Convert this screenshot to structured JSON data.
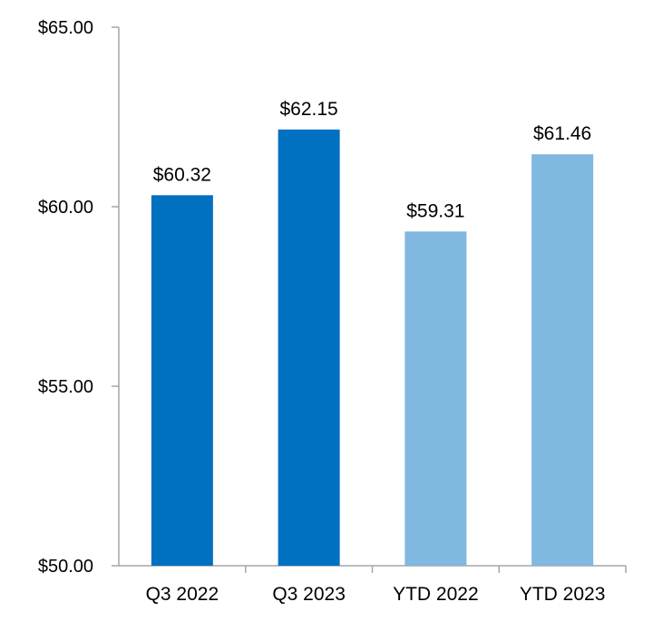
{
  "chart_data": {
    "type": "bar",
    "categories": [
      "Q3 2022",
      "Q3 2023",
      "YTD 2022",
      "YTD 2023"
    ],
    "values": [
      60.32,
      62.15,
      59.31,
      61.46
    ],
    "data_labels": [
      "$60.32",
      "$62.15",
      "$59.31",
      "$61.46"
    ],
    "bar_colors": [
      "#0070c0",
      "#0070c0",
      "#80b8e0",
      "#80b8e0"
    ],
    "ylim": [
      50,
      65
    ],
    "yticks": [
      50,
      55,
      60,
      65
    ],
    "ytick_labels": [
      "$50.00",
      "$55.00",
      "$60.00",
      "$65.00"
    ],
    "title": "",
    "xlabel": "",
    "ylabel": "",
    "grid": false,
    "legend": "none"
  }
}
